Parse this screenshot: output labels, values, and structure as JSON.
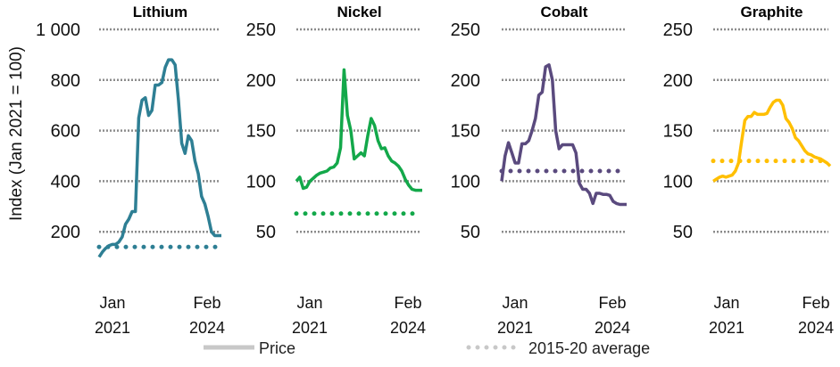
{
  "chart_data": {
    "type": "line",
    "ylabel": "Index (Jan 2021 = 100)",
    "x_start_label": [
      "Jan",
      "2021"
    ],
    "x_end_label": [
      "Feb",
      "2024"
    ],
    "x_range": [
      "Jan 2021",
      "Feb 2024"
    ],
    "legend": {
      "placement": "bottom",
      "entries": [
        {
          "label": "Price",
          "style": "solid",
          "color": "#c8c8c8"
        },
        {
          "label": "2015-20 average",
          "style": "dotted",
          "color": "#c8c8c8"
        }
      ]
    },
    "grid": true,
    "panels": [
      {
        "title": "Lithium",
        "color": "#2e7f94",
        "ylim": [
          0,
          1000
        ],
        "ticks": [
          200,
          400,
          600,
          800,
          1000
        ],
        "tick_labels": [
          "200",
          "400",
          "600",
          "800",
          "1 000"
        ],
        "average": 140,
        "values": [
          100,
          120,
          135,
          145,
          150,
          150,
          160,
          180,
          230,
          250,
          280,
          280,
          650,
          720,
          730,
          660,
          680,
          780,
          780,
          790,
          850,
          880,
          880,
          860,
          720,
          550,
          510,
          580,
          560,
          480,
          430,
          340,
          310,
          260,
          200,
          185,
          185,
          185
        ]
      },
      {
        "title": "Nickel",
        "color": "#13a84a",
        "ylim": [
          0,
          250
        ],
        "ticks": [
          50,
          100,
          150,
          200,
          250
        ],
        "tick_labels": [
          "50",
          "100",
          "150",
          "200",
          "250"
        ],
        "average": 68,
        "values": [
          100,
          104,
          93,
          94,
          100,
          103,
          106,
          108,
          109,
          110,
          113,
          114,
          118,
          133,
          210,
          165,
          150,
          122,
          125,
          128,
          125,
          145,
          162,
          155,
          140,
          132,
          133,
          125,
          120,
          118,
          115,
          110,
          102,
          96,
          92,
          91,
          91,
          91
        ]
      },
      {
        "title": "Cobalt",
        "color": "#5a4a7e",
        "ylim": [
          0,
          250
        ],
        "ticks": [
          50,
          100,
          150,
          200,
          250
        ],
        "tick_labels": [
          "50",
          "100",
          "150",
          "200",
          "250"
        ],
        "average": 110,
        "values": [
          100,
          125,
          138,
          128,
          118,
          118,
          137,
          137,
          140,
          150,
          162,
          185,
          188,
          213,
          215,
          200,
          150,
          132,
          136,
          136,
          136,
          136,
          128,
          98,
          92,
          92,
          88,
          78,
          88,
          88,
          87,
          87,
          86,
          80,
          78,
          77,
          77,
          77
        ]
      },
      {
        "title": "Graphite",
        "color": "#ffbf00",
        "ylim": [
          0,
          250
        ],
        "ticks": [
          50,
          100,
          150,
          200,
          250
        ],
        "tick_labels": [
          "50",
          "100",
          "150",
          "200",
          "250"
        ],
        "average": 120,
        "values": [
          100,
          102,
          104,
          105,
          104,
          105,
          106,
          110,
          118,
          140,
          160,
          164,
          164,
          168,
          166,
          166,
          166,
          167,
          173,
          178,
          180,
          180,
          175,
          162,
          158,
          152,
          143,
          140,
          135,
          130,
          127,
          126,
          124,
          123,
          122,
          120,
          118,
          115
        ]
      }
    ]
  }
}
